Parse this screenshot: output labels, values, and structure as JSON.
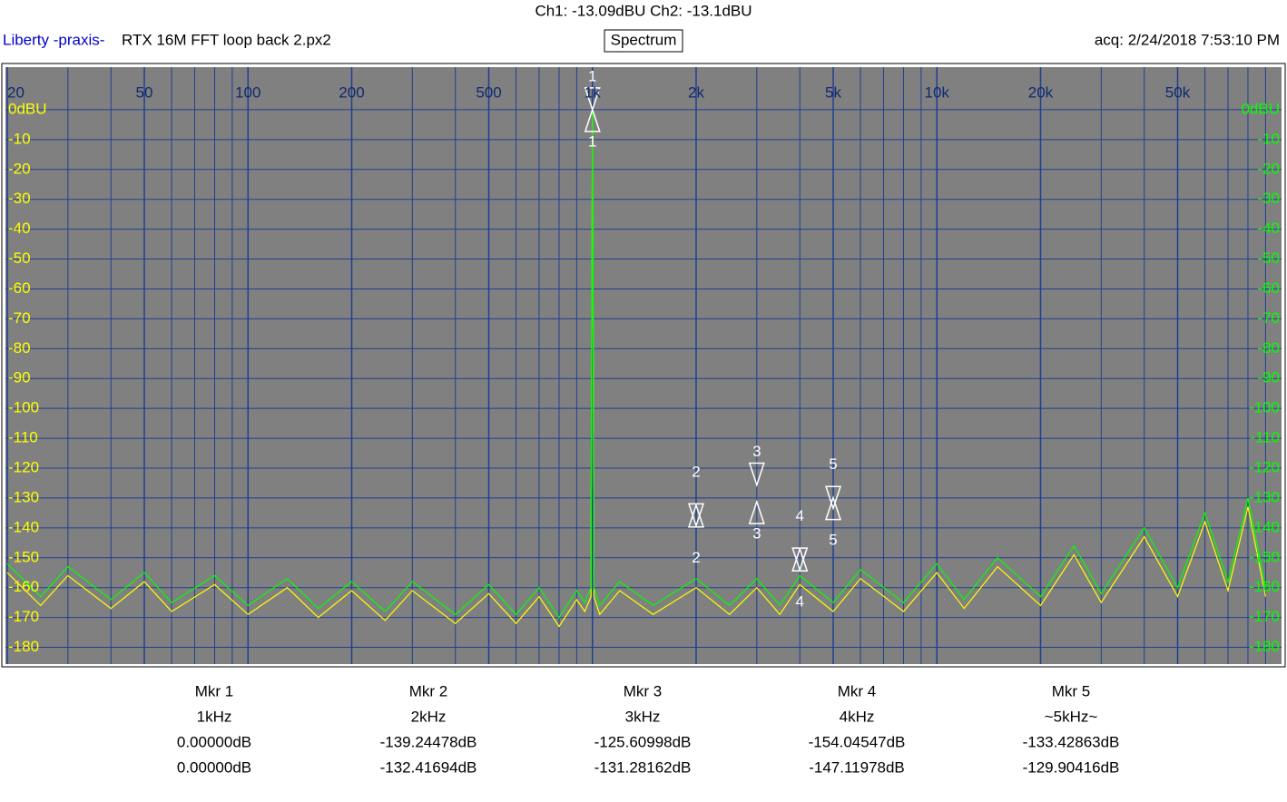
{
  "header": {
    "channels": "Ch1: -13.09dBU  Ch2: -13.1dBU",
    "brand": "Liberty -praxis-",
    "file": "RTX 16M FFT loop back 2.px2",
    "mode": "Spectrum",
    "acquired": "acq: 2/24/2018 7:53:10 PM"
  },
  "chart_data": {
    "type": "line",
    "x_log": true,
    "grid": true,
    "xlim": [
      20,
      92000
    ],
    "ylim": [
      -185,
      10
    ],
    "xticks": [
      20,
      50,
      100,
      200,
      500,
      {
        "value": 1000,
        "label": "1k"
      },
      {
        "value": 2000,
        "label": "2k"
      },
      {
        "value": 5000,
        "label": "5k"
      },
      {
        "value": 10000,
        "label": "10k"
      },
      {
        "value": 20000,
        "label": "20k"
      },
      {
        "value": 50000,
        "label": "50k"
      }
    ],
    "x_grid": [
      30,
      40,
      60,
      70,
      80,
      90,
      300,
      400,
      600,
      700,
      800,
      900,
      3000,
      4000,
      6000,
      7000,
      8000,
      9000,
      30000,
      40000,
      60000,
      70000,
      80000,
      90000
    ],
    "yticks": [
      {
        "value": 0,
        "label": "0dBU"
      },
      -10,
      -20,
      -30,
      -40,
      -50,
      -60,
      -70,
      -80,
      -90,
      -100,
      -110,
      -120,
      -130,
      -140,
      -150,
      -160,
      -170,
      -180
    ],
    "series": [
      {
        "color": "#ffff00",
        "x": [
          20,
          25,
          30,
          40,
          50,
          60,
          80,
          100,
          130,
          160,
          200,
          250,
          300,
          400,
          500,
          600,
          700,
          800,
          900,
          950,
          990,
          1000,
          1010,
          1050,
          1200,
          1500,
          2000,
          2500,
          3000,
          3500,
          4000,
          5000,
          6000,
          8000,
          10000,
          12000,
          15000,
          20000,
          25000,
          30000,
          40000,
          50000,
          60000,
          70000,
          80000,
          90000
        ],
        "values": [
          -155,
          -166,
          -156,
          -167,
          -158,
          -168,
          -159,
          -169,
          -160,
          -170,
          -161,
          -171,
          -161,
          -172,
          -162,
          -172,
          -163,
          -173,
          -164,
          -168,
          -163,
          0,
          -163,
          -169,
          -161,
          -169,
          -160,
          -169,
          -160,
          -169,
          -159,
          -168,
          -157,
          -168,
          -155,
          -167,
          -153,
          -166,
          -149,
          -165,
          -143,
          -163,
          -138,
          -161,
          -133,
          -163
        ]
      },
      {
        "color": "#00ff00",
        "x": [
          20,
          25,
          30,
          40,
          50,
          60,
          80,
          100,
          130,
          160,
          200,
          250,
          300,
          400,
          500,
          600,
          700,
          800,
          900,
          950,
          990,
          1000,
          1010,
          1050,
          1200,
          1500,
          2000,
          2500,
          3000,
          3500,
          4000,
          5000,
          6000,
          8000,
          10000,
          12000,
          15000,
          20000,
          25000,
          30000,
          40000,
          50000,
          60000,
          70000,
          80000,
          90000
        ],
        "values": [
          -152,
          -163,
          -153,
          -164,
          -155,
          -165,
          -156,
          -166,
          -157,
          -167,
          -158,
          -168,
          -158,
          -169,
          -159,
          -169,
          -160,
          -170,
          -161,
          -165,
          -160,
          0,
          -160,
          -166,
          -158,
          -166,
          -157,
          -166,
          -157,
          -166,
          -156,
          -165,
          -154,
          -165,
          -152,
          -164,
          -150,
          -163,
          -146,
          -162,
          -140,
          -160,
          -135,
          -158,
          -130,
          -160
        ]
      }
    ],
    "markers": [
      {
        "label": "Mkr 1",
        "tag": "1",
        "x": 1000,
        "x_label": "1kHz",
        "ch1": 0,
        "ch1_label": "0.00000dB",
        "ch2": 0,
        "ch2_label": "0.00000dB"
      },
      {
        "label": "Mkr 2",
        "tag": "2",
        "x": 2000,
        "x_label": "2kHz",
        "ch1": -139.24478,
        "ch1_label": "-139.24478dB",
        "ch2": -132.41694,
        "ch2_label": "-132.41694dB"
      },
      {
        "label": "Mkr 3",
        "tag": "3",
        "x": 3000,
        "x_label": "3kHz",
        "ch1": -125.60998,
        "ch1_label": "-125.60998dB",
        "ch2": -131.28162,
        "ch2_label": "-131.28162dB"
      },
      {
        "label": "Mkr 4",
        "tag": "4",
        "x": 4000,
        "x_label": "4kHz",
        "ch1": -154.04547,
        "ch1_label": "-154.04547dB",
        "ch2": -147.11978,
        "ch2_label": "-147.11978dB"
      },
      {
        "label": "Mkr 5",
        "tag": "5",
        "x": 5000,
        "x_label": "~5kHz~",
        "ch1": -133.42863,
        "ch1_label": "-133.42863dB",
        "ch2": -129.90416,
        "ch2_label": "-129.90416dB"
      }
    ]
  }
}
